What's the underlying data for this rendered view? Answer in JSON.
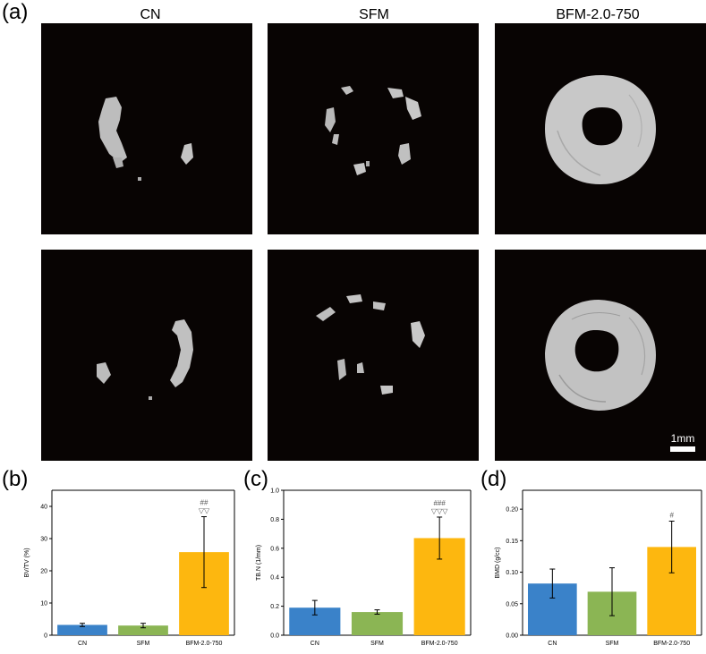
{
  "panel_a_label": "(a)",
  "panel_b_label": "(b)",
  "panel_c_label": "(c)",
  "panel_d_label": "(d)",
  "column_titles": [
    "CN",
    "SFM",
    "BFM-2.0-750"
  ],
  "scale_bar_label": "1mm",
  "colors": {
    "cn": "#3a82c9",
    "sfm": "#8bb554",
    "bfm": "#fdb70f",
    "image_bg": "#080403",
    "bone": "#c8c8c8"
  },
  "chart_data": [
    {
      "type": "bar",
      "ylabel": "BV/TV (%)",
      "categories": [
        "CN",
        "SFM",
        "BFM-2.0-750"
      ],
      "values": [
        3.2,
        3.0,
        25.8
      ],
      "errors": [
        0.5,
        0.7,
        11.0
      ],
      "ylim": [
        0,
        45
      ],
      "yticks": [
        0,
        10,
        20,
        30,
        40
      ],
      "yticklabels": [
        "0",
        "10",
        "20",
        "30",
        "40"
      ],
      "annotations": [
        "##",
        "▽▽"
      ]
    },
    {
      "type": "bar",
      "ylabel": "TB.N (1/mm)",
      "categories": [
        "CN",
        "SFM",
        "BFM-2.0-750"
      ],
      "values": [
        0.19,
        0.16,
        0.67
      ],
      "errors": [
        0.05,
        0.015,
        0.145
      ],
      "ylim": [
        0,
        1.0
      ],
      "yticks": [
        0,
        0.2,
        0.4,
        0.6,
        0.8,
        1.0
      ],
      "yticklabels": [
        "0.0",
        "0.2",
        "0.4",
        "0.6",
        "0.8",
        "1.0"
      ],
      "annotations": [
        "###",
        "▽▽▽"
      ]
    },
    {
      "type": "bar",
      "ylabel": "BMD (g/cc)",
      "categories": [
        "CN",
        "SFM",
        "BFM-2.0-750"
      ],
      "values": [
        0.082,
        0.069,
        0.14
      ],
      "errors": [
        0.023,
        0.038,
        0.041
      ],
      "ylim": [
        0,
        0.23
      ],
      "yticks": [
        0,
        0.05,
        0.1,
        0.15,
        0.2
      ],
      "yticklabels": [
        "0.00",
        "0.05",
        "0.10",
        "0.15",
        "0.20"
      ],
      "annotations": [
        "#"
      ]
    }
  ]
}
